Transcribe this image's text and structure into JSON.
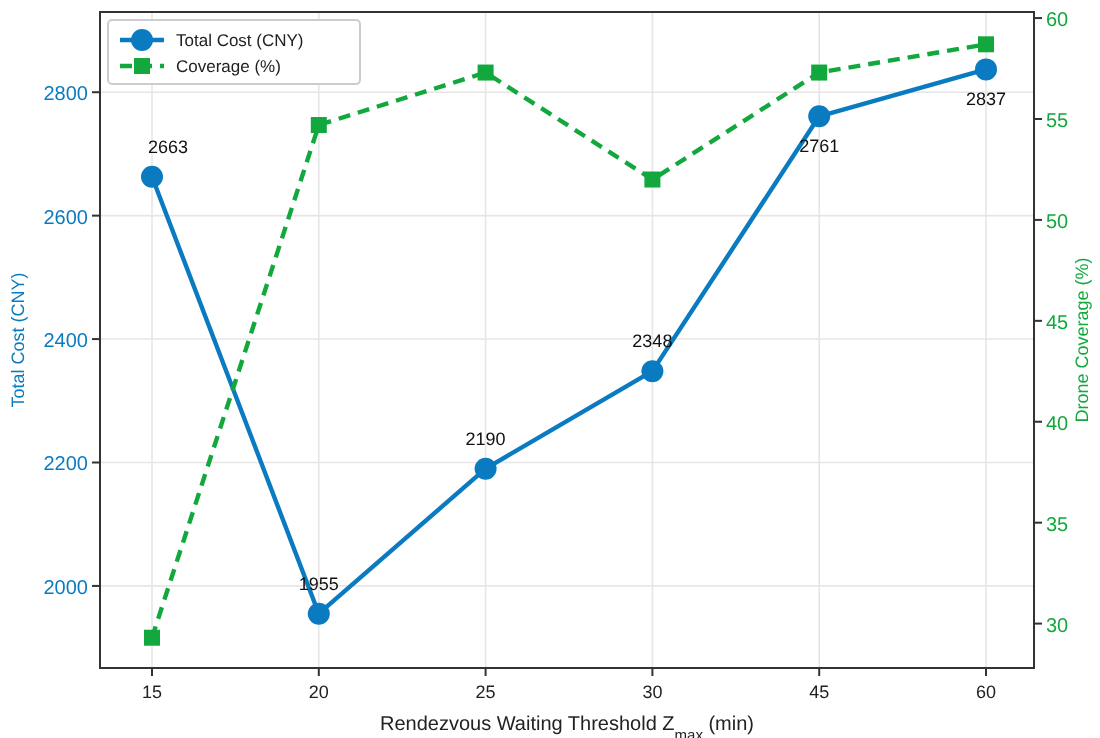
{
  "chart_data": {
    "type": "line",
    "categories": [
      "15",
      "20",
      "25",
      "30",
      "45",
      "60"
    ],
    "xlabel": "Rendezvous Waiting Threshold Z$_{max}$ (min)",
    "ylabel": "Total Cost (CNY)",
    "y2label": "Drone Coverage (%)",
    "ylim": [
      1867,
      2930
    ],
    "yticks": [
      2000,
      2200,
      2400,
      2600,
      2800
    ],
    "y2lim": [
      27.8,
      60.3
    ],
    "y2ticks": [
      30,
      35,
      40,
      45,
      50,
      55,
      60
    ],
    "grid": true,
    "legend": "top left",
    "series": [
      {
        "name": "Total Cost (CNY)",
        "color": "#0a7bc0",
        "values": [
          2663,
          1955,
          2190,
          2348,
          2761,
          2837
        ],
        "marker": "circle",
        "line_style": "solid",
        "data_labels": true
      },
      {
        "name": "Coverage (%)",
        "color": "#13a83e",
        "values": [
          29.3,
          54.7,
          57.3,
          52.0,
          57.3,
          58.7
        ],
        "marker": "square",
        "line_style": "dashed",
        "axis": "y2"
      }
    ]
  }
}
